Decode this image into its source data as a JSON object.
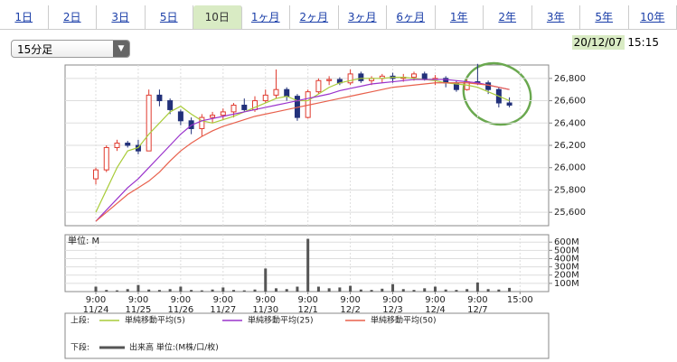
{
  "tabs": [
    "1日",
    "2日",
    "3日",
    "5日",
    "10日",
    "1ヶ月",
    "2ヶ月",
    "3ヶ月",
    "6ヶ月",
    "1年",
    "2年",
    "3年",
    "5年",
    "10年"
  ],
  "selected_tab": 4,
  "interval_select": "15分足",
  "timestamp": {
    "date": "20/12/07",
    "time": "15:15"
  },
  "chart_data": [
    {
      "type": "candlestick",
      "up_color": "#e03a2e",
      "down_color": "#22317a",
      "candles": [
        [
          25900,
          26000,
          25850,
          25980
        ],
        [
          25980,
          26200,
          25960,
          26180
        ],
        [
          26180,
          26250,
          26150,
          26220
        ],
        [
          26220,
          26240,
          26180,
          26200
        ],
        [
          26200,
          26250,
          26120,
          26150
        ],
        [
          26150,
          26700,
          26150,
          26650
        ],
        [
          26650,
          26700,
          26550,
          26600
        ],
        [
          26600,
          26620,
          26480,
          26520
        ],
        [
          26500,
          26520,
          26380,
          26420
        ],
        [
          26420,
          26450,
          26300,
          26350
        ],
        [
          26350,
          26480,
          26280,
          26450
        ],
        [
          26450,
          26500,
          26400,
          26470
        ],
        [
          26470,
          26530,
          26430,
          26500
        ],
        [
          26500,
          26580,
          26450,
          26560
        ],
        [
          26560,
          26620,
          26500,
          26520
        ],
        [
          26520,
          26640,
          26500,
          26600
        ],
        [
          26600,
          26700,
          26580,
          26650
        ],
        [
          26650,
          26880,
          26620,
          26700
        ],
        [
          26700,
          26720,
          26600,
          26640
        ],
        [
          26640,
          26660,
          26420,
          26450
        ],
        [
          26450,
          26700,
          26440,
          26680
        ],
        [
          26680,
          26800,
          26660,
          26780
        ],
        [
          26780,
          26820,
          26740,
          26790
        ],
        [
          26790,
          26810,
          26740,
          26760
        ],
        [
          26760,
          26880,
          26740,
          26840
        ],
        [
          26840,
          26860,
          26760,
          26780
        ],
        [
          26780,
          26820,
          26740,
          26800
        ],
        [
          26800,
          26840,
          26760,
          26820
        ],
        [
          26820,
          26850,
          26760,
          26800
        ],
        [
          26800,
          26840,
          26770,
          26810
        ],
        [
          26810,
          26860,
          26780,
          26840
        ],
        [
          26840,
          26860,
          26780,
          26790
        ],
        [
          26790,
          26830,
          26740,
          26800
        ],
        [
          26800,
          26820,
          26720,
          26760
        ],
        [
          26760,
          26780,
          26680,
          26700
        ],
        [
          26700,
          26790,
          26690,
          26770
        ],
        [
          26770,
          26930,
          26740,
          26760
        ],
        [
          26760,
          26780,
          26660,
          26700
        ],
        [
          26700,
          26720,
          26540,
          26580
        ],
        [
          26580,
          26630,
          26540,
          26560
        ]
      ],
      "series": [
        {
          "name": "単純移動平均(5)",
          "color": "#a9cc3a",
          "values": [
            25600,
            25800,
            26000,
            26150,
            26180,
            26300,
            26400,
            26500,
            26550,
            26480,
            26420,
            26400,
            26430,
            26460,
            26500,
            26540,
            26580,
            26620,
            26640,
            26600,
            26600,
            26660,
            26720,
            26760,
            26780,
            26800,
            26800,
            26800,
            26810,
            26810,
            26800,
            26790,
            26780,
            26760,
            26750,
            26740,
            26720,
            26680,
            26640,
            26600
          ]
        },
        {
          "name": "単純移動平均(25)",
          "color": "#9a33cc",
          "values": [
            25520,
            25620,
            25720,
            25820,
            25900,
            26000,
            26100,
            26200,
            26300,
            26380,
            26420,
            26440,
            26460,
            26480,
            26500,
            26520,
            26540,
            26560,
            26580,
            26600,
            26620,
            26640,
            26660,
            26690,
            26710,
            26730,
            26750,
            26760,
            26770,
            26780,
            26790,
            26790,
            26790,
            26790,
            26780,
            26770,
            26760,
            26740,
            26720,
            26700
          ]
        },
        {
          "name": "単純移動平均(50)",
          "color": "#e8604c",
          "values": [
            25520,
            25600,
            25680,
            25760,
            25820,
            25880,
            25960,
            26060,
            26150,
            26220,
            26280,
            26330,
            26370,
            26400,
            26430,
            26460,
            26480,
            26500,
            26520,
            26540,
            26560,
            26580,
            26600,
            26620,
            26640,
            26660,
            26680,
            26700,
            26720,
            26730,
            26740,
            26750,
            26760,
            26760,
            26760,
            26760,
            26750,
            26740,
            26720,
            26700
          ]
        }
      ],
      "legend_label": "上段:",
      "xlim": [
        -2.9,
        42.7
      ],
      "ylim": [
        25480,
        26920
      ],
      "yticks": [
        {
          "value": 25600,
          "label": "25,600"
        },
        {
          "value": 25800,
          "label": "25,800"
        },
        {
          "value": 26000,
          "label": "26,000"
        },
        {
          "value": 26200,
          "label": "26,200"
        },
        {
          "value": 26400,
          "label": "26,400"
        },
        {
          "value": 26600,
          "label": "26,600"
        },
        {
          "value": 26800,
          "label": "26,800"
        }
      ],
      "grid": true
    },
    {
      "type": "bar",
      "unit_label": "単位: M",
      "color": "#555555",
      "values": [
        60,
        20,
        15,
        30,
        80,
        25,
        20,
        30,
        60,
        20,
        15,
        25,
        50,
        20,
        15,
        25,
        280,
        40,
        30,
        60,
        640,
        60,
        40,
        50,
        70,
        25,
        20,
        35,
        90,
        30,
        20,
        40,
        60,
        25,
        20,
        30,
        110,
        30,
        25,
        45
      ],
      "series_name": "出来高 単位:(M株/口/枚)",
      "legend_label": "下段:",
      "xlim": [
        -2.9,
        42.7
      ],
      "ylim": [
        0,
        690
      ],
      "yticks": [
        {
          "value": 100,
          "label": "100M"
        },
        {
          "value": 200,
          "label": "200M"
        },
        {
          "value": 300,
          "label": "300M"
        },
        {
          "value": 400,
          "label": "400M"
        },
        {
          "value": 500,
          "label": "500M"
        },
        {
          "value": 600,
          "label": "600M"
        }
      ],
      "xticks": [
        {
          "value": 0,
          "label": [
            "9:00",
            "11/24"
          ]
        },
        {
          "value": 4,
          "label": [
            "9:00",
            "11/25"
          ]
        },
        {
          "value": 8,
          "label": [
            "9:00",
            "11/26"
          ]
        },
        {
          "value": 12,
          "label": [
            "9:00",
            "11/27"
          ]
        },
        {
          "value": 16,
          "label": [
            "9:00",
            "11/30"
          ]
        },
        {
          "value": 20,
          "label": [
            "9:00",
            "12/1"
          ]
        },
        {
          "value": 24,
          "label": [
            "9:00",
            "12/2"
          ]
        },
        {
          "value": 28,
          "label": [
            "9:00",
            "12/3"
          ]
        },
        {
          "value": 32,
          "label": [
            "9:00",
            "12/4"
          ]
        },
        {
          "value": 36,
          "label": [
            "9:00",
            "12/7"
          ]
        },
        {
          "value": 40,
          "label": [
            "15:00"
          ]
        }
      ],
      "grid": true
    }
  ]
}
